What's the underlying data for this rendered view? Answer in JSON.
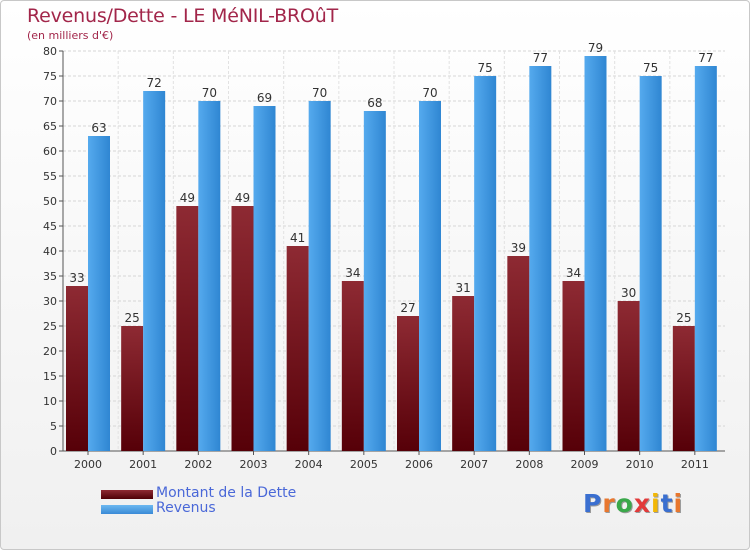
{
  "title": "Revenus/Dette - LE MéNIL-BROûT",
  "subtitle": "(en milliers d'€)",
  "logo": {
    "text": "Proxiti",
    "letters": [
      "P",
      "r",
      "o",
      "x",
      "i",
      "t",
      "i"
    ],
    "colors": [
      "#3a6fd0",
      "#e8772e",
      "#3aa84a",
      "#e23a3a",
      "#f2b705",
      "#3a6fd0",
      "#e8772e"
    ]
  },
  "legend": [
    {
      "label": "Montant de la Dette",
      "color": "#5e0a12"
    },
    {
      "label": "Revenus",
      "color": "#4a9de0"
    }
  ],
  "chart_data": {
    "type": "bar",
    "title": "Revenus/Dette - LE MéNIL-BROûT",
    "subtitle": "(en milliers d'€)",
    "categories": [
      "2000",
      "2001",
      "2002",
      "2003",
      "2004",
      "2005",
      "2006",
      "2007",
      "2008",
      "2009",
      "2010",
      "2011"
    ],
    "series": [
      {
        "name": "Montant de la Dette",
        "color": "#7a1a22",
        "values": [
          33,
          25,
          49,
          49,
          41,
          34,
          27,
          31,
          39,
          34,
          30,
          25
        ]
      },
      {
        "name": "Revenus",
        "color": "#4a9de0",
        "values": [
          63,
          72,
          70,
          69,
          70,
          68,
          70,
          75,
          77,
          79,
          75,
          77
        ]
      }
    ],
    "ylim": [
      0,
      80
    ],
    "ytick_step": 5,
    "grid": true,
    "legend_position": "bottom-left"
  }
}
